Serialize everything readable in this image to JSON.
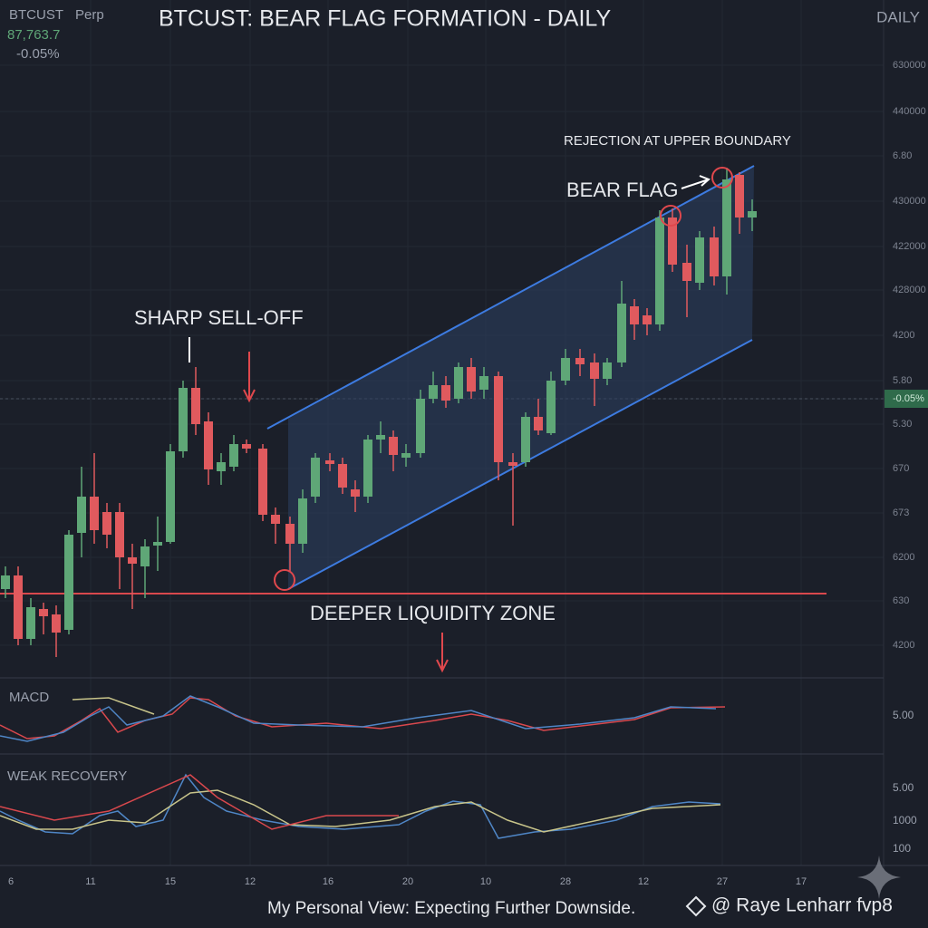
{
  "header": {
    "symbol": "BTCUST",
    "contract": "Perp",
    "price": "87,763.7",
    "change": "-0.05%",
    "title": "BTCUST: BEAR FLAG FORMATION - DAILY",
    "timeframe": "DAILY"
  },
  "price_axis": [
    "630000",
    "440000",
    "6.80",
    "430000",
    "422000",
    "428000",
    "4200",
    "5.80",
    "-0.05%",
    "5.30",
    "670",
    "673",
    "6200",
    "630",
    "4200"
  ],
  "time_axis": [
    "6",
    "11",
    "15",
    "12",
    "16",
    "20",
    "10",
    "28",
    "12",
    "27",
    "17"
  ],
  "annotations": {
    "sell_off": "SHARP SELL-OFF",
    "bear_flag": "BEAR FLAG",
    "rejection": "REJECTION AT UPPER BOUNDARY",
    "liquidity": "DEEPER LIQUIDITY ZONE"
  },
  "macd_panel": {
    "label": "MACD",
    "axis": [
      "5.00"
    ]
  },
  "recovery_panel": {
    "label": "WEAK RECOVERY",
    "axis": [
      "5.00",
      "1000",
      "100"
    ]
  },
  "footer": {
    "note": "My Personal View: Expecting Further Downside.",
    "credit": "@ Raye Lenharr fvp8"
  }
}
